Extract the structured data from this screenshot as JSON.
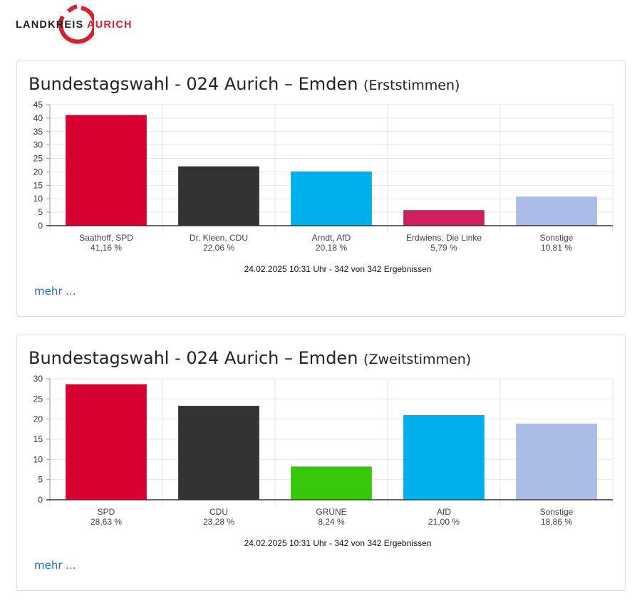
{
  "logo": {
    "text_primary": "LANDKREIS",
    "text_accent": "AURICH",
    "brand_color": "#d5202e"
  },
  "panels": [
    {
      "title": "Bundestagswahl - 024 Aurich – Emden",
      "subtitle": "(Erststimmen)",
      "timestamp": "24.02.2025 10:31 Uhr - 342 von 342 Ergebnissen",
      "more_label": "mehr ..."
    },
    {
      "title": "Bundestagswahl - 024 Aurich – Emden",
      "subtitle": "(Zweitstimmen)",
      "timestamp": "24.02.2025 10:31 Uhr - 342 von 342 Ergebnissen",
      "more_label": "mehr ..."
    }
  ],
  "chart_data": [
    {
      "type": "bar",
      "categories": [
        "Saathoff, SPD",
        "Dr. Kleen, CDU",
        "Arndt, AfD",
        "Erdwiens, Die Linke",
        "Sonstige"
      ],
      "values": [
        41.16,
        22.06,
        20.18,
        5.79,
        10.81
      ],
      "value_labels": [
        "41,16 %",
        "22,06 %",
        "20,18 %",
        "5,79 %",
        "10,81 %"
      ],
      "colors": [
        "#d70030",
        "#333333",
        "#00b0ea",
        "#d01f5f",
        "#abbde6"
      ],
      "ylim": [
        0,
        45
      ],
      "yticks": [
        0,
        5,
        10,
        15,
        20,
        25,
        30,
        35,
        40,
        45
      ],
      "grid": true
    },
    {
      "type": "bar",
      "categories": [
        "SPD",
        "CDU",
        "GRÜNE",
        "AfD",
        "Sonstige"
      ],
      "values": [
        28.63,
        23.28,
        8.24,
        21.0,
        18.86
      ],
      "value_labels": [
        "28,63 %",
        "23,28 %",
        "8,24 %",
        "21,00 %",
        "18,86 %"
      ],
      "colors": [
        "#d70030",
        "#333333",
        "#36c90a",
        "#00b0ea",
        "#abbde6"
      ],
      "ylim": [
        0,
        30
      ],
      "yticks": [
        0,
        5,
        10,
        15,
        20,
        25,
        30
      ],
      "grid": true
    }
  ]
}
